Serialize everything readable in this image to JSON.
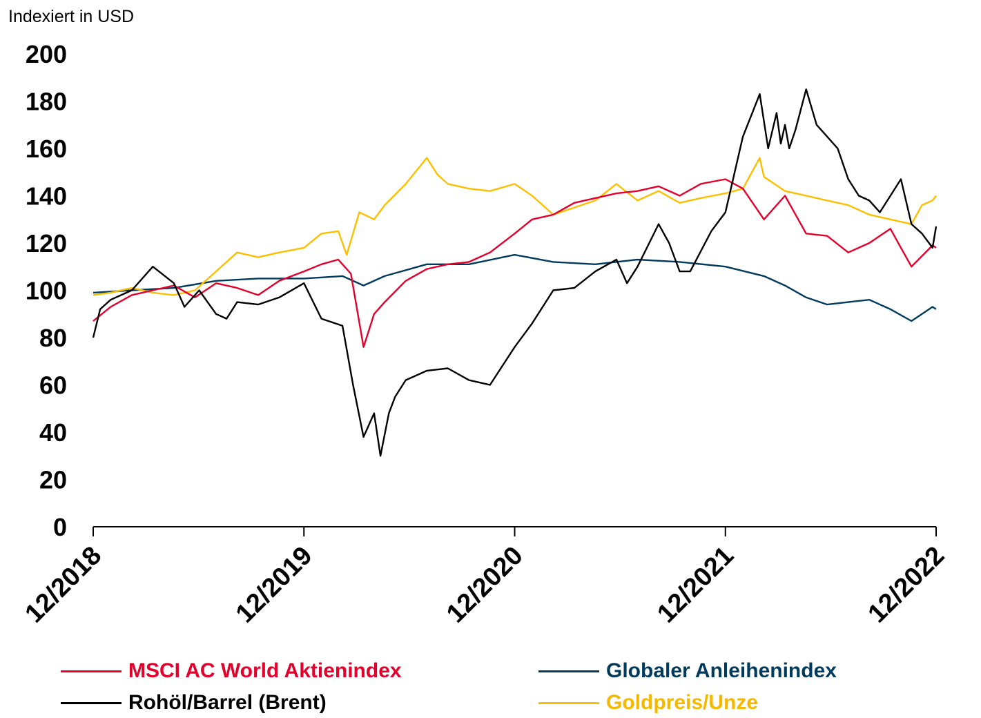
{
  "chart_data": {
    "type": "line",
    "ylabel": "Indexiert in USD",
    "ylim": [
      0,
      200
    ],
    "yticks": [
      "0",
      "20",
      "40",
      "60",
      "80",
      "100",
      "120",
      "140",
      "160",
      "180",
      "200"
    ],
    "xlim": [
      2018.917,
      2022.917
    ],
    "xtick_labels": [
      "12/2018",
      "12/2019",
      "12/2020",
      "12/2021",
      "12/2022"
    ],
    "xtick_values": [
      2018.917,
      2019.917,
      2020.917,
      2021.917,
      2022.917
    ],
    "grid": false,
    "legend_position": "bottom",
    "series": [
      {
        "name": "MSCI AC World Aktienindex",
        "color": "#e4002b",
        "x": [
          2018.917,
          2019.0,
          2019.1,
          2019.2,
          2019.3,
          2019.4,
          2019.5,
          2019.6,
          2019.7,
          2019.8,
          2019.917,
          2020.0,
          2020.08,
          2020.14,
          2020.2,
          2020.25,
          2020.3,
          2020.4,
          2020.5,
          2020.6,
          2020.7,
          2020.8,
          2020.917,
          2021.0,
          2021.1,
          2021.2,
          2021.3,
          2021.4,
          2021.5,
          2021.6,
          2021.7,
          2021.8,
          2021.917,
          2022.0,
          2022.1,
          2022.2,
          2022.3,
          2022.4,
          2022.5,
          2022.6,
          2022.7,
          2022.75,
          2022.8,
          2022.9,
          2022.917
        ],
        "y": [
          87,
          93,
          98,
          100,
          102,
          97,
          103,
          101,
          98,
          104,
          108,
          111,
          113,
          107,
          76,
          90,
          95,
          104,
          109,
          111,
          112,
          116,
          124,
          130,
          132,
          137,
          139,
          141,
          142,
          144,
          140,
          145,
          147,
          143,
          130,
          140,
          124,
          123,
          116,
          120,
          126,
          118,
          110,
          119,
          118
        ]
      },
      {
        "name": "Globaler Anleihenindex",
        "color": "#003a5d",
        "x": [
          2018.917,
          2019.1,
          2019.3,
          2019.5,
          2019.7,
          2019.917,
          2020.1,
          2020.2,
          2020.3,
          2020.5,
          2020.7,
          2020.917,
          2021.1,
          2021.3,
          2021.5,
          2021.7,
          2021.917,
          2022.1,
          2022.2,
          2022.3,
          2022.4,
          2022.5,
          2022.6,
          2022.7,
          2022.8,
          2022.9,
          2022.917
        ],
        "y": [
          99,
          100,
          101,
          104,
          105,
          105,
          106,
          102,
          106,
          111,
          111,
          115,
          112,
          111,
          113,
          112,
          110,
          106,
          102,
          97,
          94,
          95,
          96,
          92,
          87,
          93,
          92
        ]
      },
      {
        "name": "Rohöl/Barrel (Brent)",
        "color": "#000000",
        "x": [
          2018.917,
          2018.95,
          2019.0,
          2019.1,
          2019.2,
          2019.3,
          2019.35,
          2019.42,
          2019.5,
          2019.55,
          2019.6,
          2019.7,
          2019.8,
          2019.917,
          2020.0,
          2020.1,
          2020.15,
          2020.2,
          2020.25,
          2020.28,
          2020.32,
          2020.35,
          2020.4,
          2020.5,
          2020.6,
          2020.7,
          2020.8,
          2020.917,
          2021.0,
          2021.1,
          2021.2,
          2021.3,
          2021.4,
          2021.45,
          2021.5,
          2021.6,
          2021.65,
          2021.7,
          2021.75,
          2021.85,
          2021.917,
          2022.0,
          2022.08,
          2022.12,
          2022.16,
          2022.18,
          2022.2,
          2022.22,
          2022.25,
          2022.3,
          2022.35,
          2022.4,
          2022.45,
          2022.5,
          2022.55,
          2022.6,
          2022.65,
          2022.7,
          2022.75,
          2022.8,
          2022.85,
          2022.9,
          2022.917
        ],
        "y": [
          80,
          92,
          96,
          100,
          110,
          103,
          93,
          100,
          90,
          88,
          95,
          94,
          97,
          103,
          88,
          85,
          60,
          38,
          48,
          30,
          48,
          55,
          62,
          66,
          67,
          62,
          60,
          76,
          86,
          100,
          101,
          108,
          113,
          103,
          110,
          128,
          120,
          108,
          108,
          125,
          133,
          165,
          183,
          160,
          175,
          162,
          170,
          160,
          168,
          185,
          170,
          165,
          160,
          147,
          140,
          138,
          133,
          140,
          147,
          128,
          124,
          118,
          127
        ]
      },
      {
        "name": "Goldpreis/Unze",
        "color": "#fcbf00",
        "x": [
          2018.917,
          2019.0,
          2019.1,
          2019.2,
          2019.3,
          2019.4,
          2019.5,
          2019.6,
          2019.7,
          2019.8,
          2019.917,
          2020.0,
          2020.08,
          2020.12,
          2020.18,
          2020.25,
          2020.3,
          2020.4,
          2020.5,
          2020.55,
          2020.6,
          2020.7,
          2020.8,
          2020.917,
          2021.0,
          2021.1,
          2021.2,
          2021.3,
          2021.4,
          2021.5,
          2021.6,
          2021.7,
          2021.8,
          2021.917,
          2022.0,
          2022.08,
          2022.1,
          2022.2,
          2022.3,
          2022.4,
          2022.5,
          2022.6,
          2022.7,
          2022.8,
          2022.85,
          2022.9,
          2022.917
        ],
        "y": [
          98,
          99,
          101,
          99,
          98,
          100,
          108,
          116,
          114,
          116,
          118,
          124,
          125,
          115,
          133,
          130,
          136,
          145,
          156,
          149,
          145,
          143,
          142,
          145,
          140,
          132,
          135,
          138,
          145,
          138,
          142,
          137,
          139,
          141,
          143,
          156,
          148,
          142,
          140,
          138,
          136,
          132,
          130,
          128,
          136,
          138,
          140
        ]
      }
    ]
  }
}
